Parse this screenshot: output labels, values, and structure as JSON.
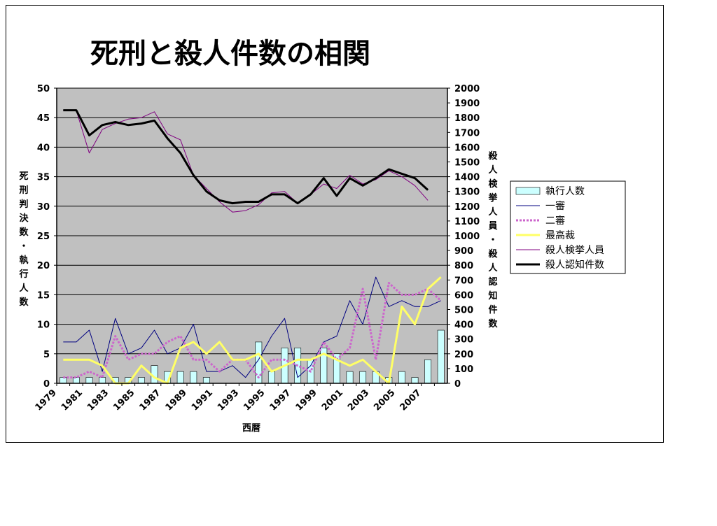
{
  "chart_data": {
    "type": "bar+line",
    "title": "死刑と殺人件数の相関",
    "xlabel": "西暦",
    "ylabel_left": "死刑判決数・執行人数",
    "ylabel_right": "殺人検挙人員・殺人認知件数",
    "ylim_left": [
      0,
      50
    ],
    "ylim_right": [
      0,
      2000
    ],
    "yticks_left": [
      0,
      5,
      10,
      15,
      20,
      25,
      30,
      35,
      40,
      45,
      50
    ],
    "yticks_right": [
      0,
      100,
      200,
      300,
      400,
      500,
      600,
      700,
      800,
      900,
      1000,
      1100,
      1200,
      1300,
      1400,
      1500,
      1600,
      1700,
      1800,
      1900,
      2000
    ],
    "x": [
      1979,
      1980,
      1981,
      1982,
      1983,
      1984,
      1985,
      1986,
      1987,
      1988,
      1989,
      1990,
      1991,
      1992,
      1993,
      1994,
      1995,
      1996,
      1997,
      1998,
      1999,
      2000,
      2001,
      2002,
      2003,
      2004,
      2005,
      2006,
      2007,
      2008
    ],
    "xtick_labels": [
      "1979",
      "1981",
      "1983",
      "1985",
      "1987",
      "1989",
      "1991",
      "1993",
      "1995",
      "1997",
      "1999",
      "2001",
      "2003",
      "2005",
      "2007"
    ],
    "grid": true,
    "legend_position": "right",
    "series": [
      {
        "name": "執行人数",
        "kind": "bar",
        "axis": "left",
        "color": "#ccffff",
        "values": [
          1,
          1,
          1,
          1,
          1,
          1,
          1,
          3,
          2,
          2,
          2,
          1,
          0,
          0,
          0,
          7,
          2,
          6,
          6,
          4,
          6,
          5,
          2,
          2,
          2,
          1,
          2,
          1,
          4,
          9
        ]
      },
      {
        "name": "一審",
        "kind": "line",
        "axis": "left",
        "color": "#000080",
        "width": 1,
        "values": [
          7,
          7,
          9,
          2,
          11,
          5,
          6,
          9,
          5,
          6,
          10,
          2,
          2,
          3,
          1,
          4,
          8,
          11,
          1,
          3,
          7,
          8,
          14,
          10,
          18,
          13,
          14,
          13,
          13,
          14
        ]
      },
      {
        "name": "二審",
        "kind": "line",
        "axis": "left",
        "color": "#cc66cc",
        "width": 3,
        "dash": "3,2",
        "values": [
          1,
          1,
          2,
          1,
          8,
          4,
          5,
          5,
          7,
          8,
          4,
          4,
          2,
          4,
          4,
          1,
          4,
          4,
          3,
          2,
          7,
          4,
          6,
          16,
          4,
          17,
          15,
          15,
          16,
          14
        ]
      },
      {
        "name": "最高裁",
        "kind": "line",
        "axis": "left",
        "color": "#ffff66",
        "width": 3,
        "values": [
          4,
          4,
          4,
          3,
          0,
          0,
          3,
          1,
          0,
          6,
          7,
          5,
          7,
          4,
          4,
          5,
          2,
          3,
          4,
          4,
          5,
          4,
          3,
          4,
          2,
          0,
          13,
          10,
          16,
          18
        ]
      },
      {
        "name": "殺人検挙人員",
        "kind": "line",
        "axis": "right",
        "color": "#800080",
        "width": 1,
        "values": [
          1850,
          1850,
          1560,
          1720,
          1760,
          1790,
          1800,
          1840,
          1690,
          1650,
          1410,
          1320,
          1230,
          1160,
          1170,
          1210,
          1290,
          1300,
          1220,
          1280,
          1350,
          1320,
          1410,
          1350,
          1380,
          1440,
          1400,
          1340,
          1240,
          null
        ]
      },
      {
        "name": "殺人認知件数",
        "kind": "line",
        "axis": "right",
        "color": "#000000",
        "width": 3,
        "values": [
          1850,
          1850,
          1680,
          1750,
          1770,
          1750,
          1760,
          1780,
          1660,
          1560,
          1410,
          1300,
          1240,
          1220,
          1230,
          1230,
          1280,
          1280,
          1220,
          1280,
          1390,
          1270,
          1390,
          1340,
          1390,
          1450,
          1420,
          1390,
          1310,
          null
        ]
      }
    ]
  }
}
